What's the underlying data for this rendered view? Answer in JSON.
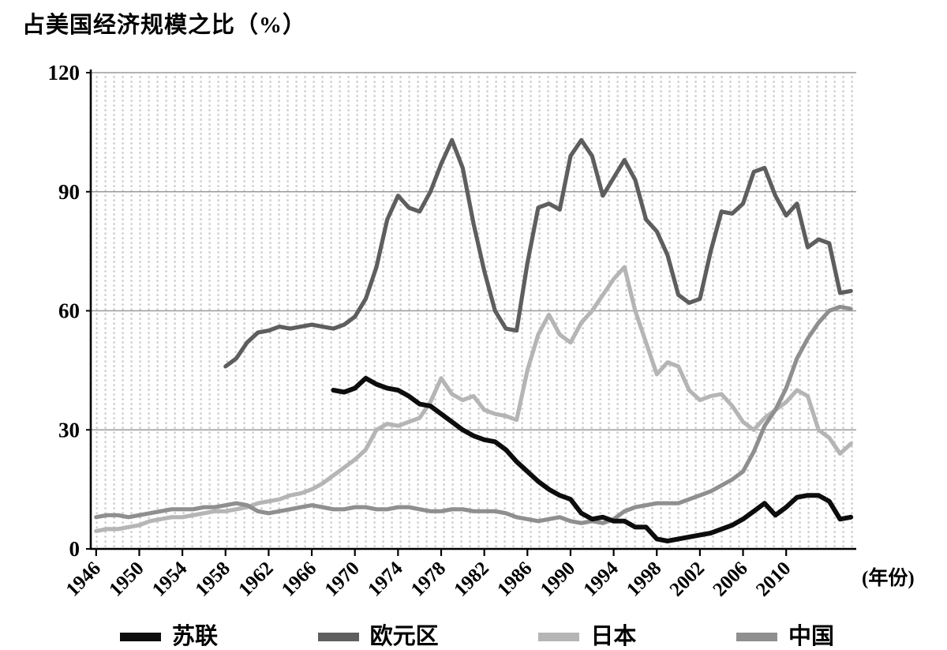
{
  "title": "占美国经济规模之比（%）",
  "axis": {
    "y_ticks": [
      0,
      30,
      60,
      90,
      120
    ],
    "x_ticks": [
      1946,
      1950,
      1954,
      1958,
      1962,
      1966,
      1970,
      1974,
      1978,
      1982,
      1986,
      1990,
      1994,
      1998,
      2002,
      2006,
      2010
    ],
    "x_unit_label": "(年份)"
  },
  "legend": {
    "items": [
      {
        "label": "苏联"
      },
      {
        "label": "欧元区"
      },
      {
        "label": "日本"
      },
      {
        "label": "中国"
      }
    ]
  },
  "chart_data": {
    "type": "line",
    "title": "占美国经济规模之比（%）",
    "xlabel": "年份",
    "ylabel": "占美国经济规模之比（%）",
    "ylim": [
      0,
      120
    ],
    "x_range": [
      1946,
      2016
    ],
    "x_tick_labels": [
      1946,
      1950,
      1954,
      1958,
      1962,
      1966,
      1970,
      1974,
      1978,
      1982,
      1986,
      1990,
      1994,
      1998,
      2002,
      2006,
      2010
    ],
    "grid": "fine dotted background, solid horizontal lines at 30/60/90/120",
    "legend_position": "bottom",
    "series": [
      {
        "name": "苏联",
        "color": "#0d0d0d",
        "start_year": 1968,
        "values": [
          40,
          39.5,
          40.5,
          43,
          41.5,
          40.5,
          40,
          38.5,
          36.5,
          36,
          34,
          32,
          30,
          28.5,
          27.5,
          27,
          25,
          22,
          19.5,
          17,
          15,
          13.5,
          12.5,
          9,
          7.5,
          8,
          7,
          7,
          5.5,
          5.5,
          2.5,
          2,
          2.5,
          3,
          3.5,
          4,
          5,
          6,
          7.5,
          9.5,
          11.5,
          8.5,
          10.5,
          13,
          13.5,
          13.5,
          12,
          7.5,
          8
        ]
      },
      {
        "name": "欧元区",
        "color": "#5e5e5e",
        "start_year": 1958,
        "values": [
          46,
          48,
          52,
          54.5,
          55,
          56,
          55.5,
          56,
          56.5,
          56,
          55.5,
          56.5,
          58.5,
          63,
          71,
          83,
          89,
          86,
          85,
          90,
          97,
          103,
          96,
          82,
          70,
          60,
          55.5,
          55,
          72,
          86,
          87,
          85.5,
          99,
          103,
          99,
          89,
          93.5,
          98,
          93,
          83,
          80,
          74,
          64,
          62,
          63,
          75,
          85,
          84.5,
          87,
          95,
          96,
          89,
          84,
          87,
          76,
          78,
          77,
          64.5,
          65
        ]
      },
      {
        "name": "日本",
        "color": "#b5b5b5",
        "start_year": 1946,
        "values": [
          4.5,
          5,
          5,
          5.5,
          6,
          7,
          7.5,
          8,
          8,
          8.5,
          9,
          9.5,
          9.5,
          10,
          10.5,
          11.5,
          12,
          12.5,
          13.5,
          14,
          15,
          16.5,
          18.5,
          20.5,
          22.5,
          25,
          30,
          31.5,
          31,
          32,
          33,
          37,
          43,
          39,
          37.5,
          38.5,
          35,
          34,
          33.5,
          32.5,
          45,
          54,
          59,
          54,
          52,
          57,
          60,
          64,
          68,
          71,
          60,
          52,
          44,
          47,
          46,
          40,
          37.5,
          38.5,
          39,
          36,
          32,
          30,
          33,
          35,
          37,
          40,
          38.5,
          30,
          28,
          24,
          26.5
        ]
      },
      {
        "name": "中国",
        "color": "#8f8f8f",
        "start_year": 1946,
        "values": [
          8,
          8.5,
          8.5,
          8,
          8.5,
          9,
          9.5,
          10,
          10,
          10,
          10.5,
          10.5,
          11,
          11.5,
          11,
          9.5,
          9,
          9.5,
          10,
          10.5,
          11,
          10.5,
          10,
          10,
          10.5,
          10.5,
          10,
          10,
          10.5,
          10.5,
          10,
          9.5,
          9.5,
          10,
          10,
          9.5,
          9.5,
          9.5,
          9,
          8,
          7.5,
          7,
          7.5,
          8,
          7,
          6.5,
          7,
          6.5,
          7.5,
          9.5,
          10.5,
          11,
          11.5,
          11.5,
          11.5,
          12.5,
          13.5,
          14.5,
          16,
          17.5,
          19.5,
          24.5,
          31,
          35,
          40.5,
          48,
          53,
          57,
          60,
          61,
          60.5
        ]
      }
    ]
  }
}
